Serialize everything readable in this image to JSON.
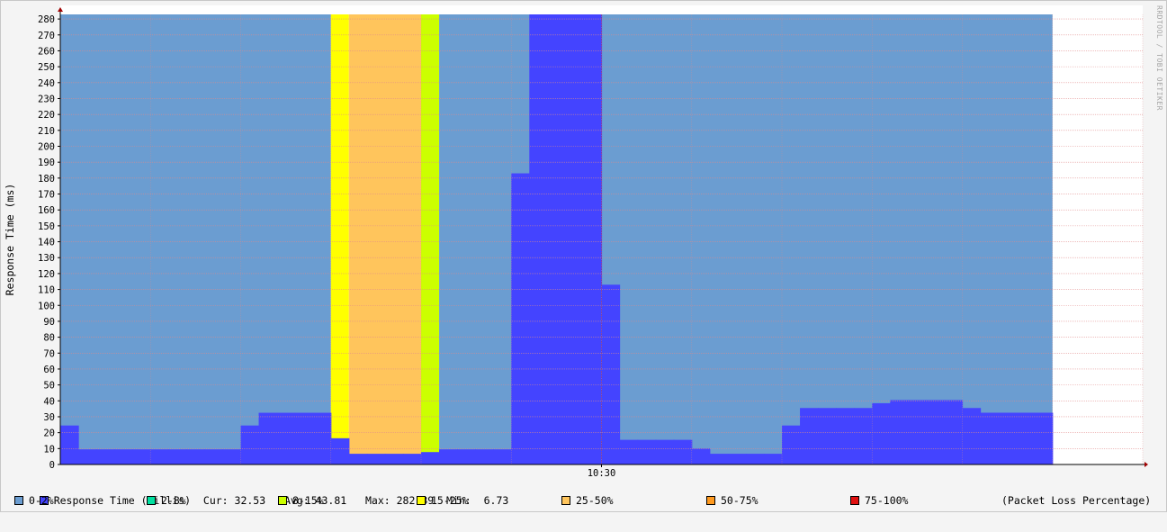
{
  "chart_data": {
    "type": "area",
    "ylabel": "Response Time (ms)",
    "ylim": [
      0,
      282.89
    ],
    "yticks": [
      0,
      10,
      20,
      30,
      40,
      50,
      60,
      70,
      80,
      90,
      100,
      110,
      120,
      130,
      140,
      150,
      160,
      170,
      180,
      190,
      200,
      210,
      220,
      230,
      240,
      250,
      260,
      270,
      280
    ],
    "xticks": [
      {
        "label": "10:30",
        "step": 30
      }
    ],
    "steps_total": 60,
    "data_steps": 55,
    "grid": true,
    "watermark": "RRDTOOL / TOBI OETIKER",
    "response_time": {
      "name": "Response Time (millis)",
      "values": [
        24.5,
        9.5,
        9.5,
        9.5,
        9.5,
        9.5,
        9.5,
        9.5,
        9.5,
        9.5,
        24.5,
        32.5,
        32.5,
        32.5,
        32.5,
        16.5,
        6.73,
        6.73,
        6.73,
        6.73,
        7.8,
        9.5,
        9.5,
        9.5,
        9.5,
        183,
        282.89,
        282.89,
        282.89,
        282.89,
        113,
        15.5,
        15.5,
        15.5,
        15.5,
        10,
        6.73,
        6.73,
        6.73,
        6.73,
        24.5,
        35.5,
        35.5,
        35.5,
        35.5,
        38.5,
        40.5,
        40.5,
        40.5,
        40.5,
        35.5,
        32.53,
        32.53,
        32.53,
        32.53
      ]
    },
    "packet_loss_bands": [
      {
        "from": 0,
        "to": 15,
        "band": 0
      },
      {
        "from": 15,
        "to": 16,
        "band": 3
      },
      {
        "from": 16,
        "to": 20,
        "band": 4
      },
      {
        "from": 20,
        "to": 21,
        "band": 2
      },
      {
        "from": 21,
        "to": 55,
        "band": 0
      }
    ],
    "stats": {
      "cur_label": "Cur:",
      "cur": "32.53",
      "avg_label": "Avg:",
      "avg": "43.81",
      "max_label": "Max:",
      "max": "282.89",
      "min_label": "Min:",
      "min": "6.73"
    },
    "loss_legend": [
      {
        "label": "0-2%",
        "color": "#6b9dd1"
      },
      {
        "label": "2-8%",
        "color": "#00e0a0"
      },
      {
        "label": "8-15%",
        "color": "#ccff00"
      },
      {
        "label": "15-25%",
        "color": "#ffff00"
      },
      {
        "label": "25-50%",
        "color": "#ffc55c"
      },
      {
        "label": "50-75%",
        "color": "#ff9a1f"
      },
      {
        "label": "75-100%",
        "color": "#e01010"
      }
    ],
    "loss_legend_title": "(Packet Loss Percentage)",
    "response_color": "#4444ff"
  }
}
